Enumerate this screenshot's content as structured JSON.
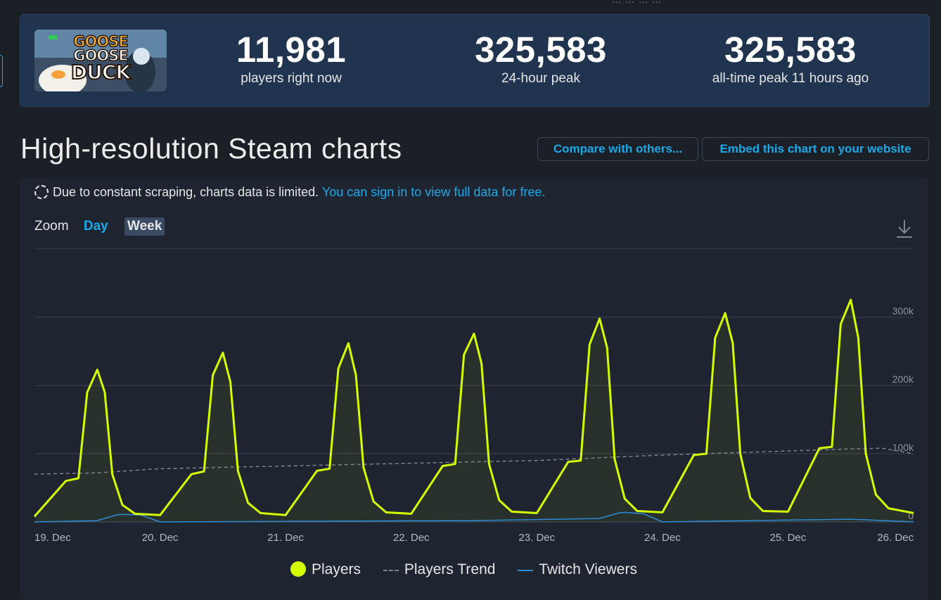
{
  "header": {
    "top_faint_text": "… … … …"
  },
  "game": {
    "title_line1": "GOOSE",
    "title_line2": "GOOSE",
    "title_line3": "DUCK"
  },
  "stats": [
    {
      "value": "11,981",
      "label": "players right now"
    },
    {
      "value": "325,583",
      "label": "24-hour peak"
    },
    {
      "value": "325,583",
      "label": "all-time peak 11 hours ago"
    }
  ],
  "page_title": "High-resolution Steam charts",
  "buttons": {
    "compare": "Compare with others...",
    "embed": "Embed this chart on your website"
  },
  "notice": {
    "text": "Due to constant scraping, charts data is limited.",
    "link": "You can sign in to view full data for free."
  },
  "zoom": {
    "label": "Zoom",
    "options": [
      "Day",
      "Week"
    ],
    "active": "Week"
  },
  "icons": {
    "loading": "spinner-icon",
    "download": "download-icon"
  },
  "colors": {
    "players": "#d4ff00",
    "trend": "#7a8290",
    "twitch": "#2d8bd8",
    "accent": "#1aa9ea"
  },
  "chart_data": {
    "type": "line",
    "x_tick_labels": [
      "19. Dec",
      "20. Dec",
      "21. Dec",
      "22. Dec",
      "23. Dec",
      "24. Dec",
      "25. Dec",
      "26. Dec"
    ],
    "y_tick_labels": [
      "0",
      "100k",
      "200k",
      "300k"
    ],
    "ylim": [
      0,
      400000
    ],
    "grid": true,
    "legend_position": "bottom",
    "series": [
      {
        "name": "Players",
        "x_days": [
          0.0,
          0.25,
          0.35,
          0.42,
          0.5,
          0.56,
          0.62,
          0.7,
          0.8,
          1.0,
          1.25,
          1.35,
          1.42,
          1.5,
          1.56,
          1.62,
          1.7,
          1.8,
          2.0,
          2.25,
          2.35,
          2.42,
          2.5,
          2.56,
          2.62,
          2.7,
          2.8,
          3.0,
          3.25,
          3.35,
          3.42,
          3.5,
          3.56,
          3.62,
          3.7,
          3.8,
          4.0,
          4.25,
          4.35,
          4.42,
          4.5,
          4.56,
          4.62,
          4.7,
          4.8,
          5.0,
          5.25,
          5.35,
          5.42,
          5.5,
          5.56,
          5.62,
          5.7,
          5.8,
          6.0,
          6.25,
          6.35,
          6.42,
          6.5,
          6.56,
          6.62,
          6.7,
          6.8,
          7.0
        ],
        "values": [
          8000,
          60000,
          64000,
          190000,
          223000,
          190000,
          70000,
          25000,
          12000,
          10000,
          70000,
          74000,
          215000,
          248000,
          205000,
          75000,
          28000,
          13000,
          10000,
          75000,
          78000,
          225000,
          262000,
          215000,
          80000,
          30000,
          14000,
          12000,
          82000,
          85000,
          245000,
          276000,
          232000,
          85000,
          32000,
          15000,
          13000,
          88000,
          90000,
          260000,
          298000,
          255000,
          92000,
          34000,
          16000,
          14000,
          98000,
          100000,
          270000,
          306000,
          262000,
          100000,
          35000,
          16000,
          15000,
          108000,
          110000,
          290000,
          325583,
          270000,
          100000,
          40000,
          20000,
          13000
        ]
      },
      {
        "name": "Players Trend",
        "x_days": [
          0.0,
          0.5,
          1.0,
          1.5,
          2.0,
          2.5,
          3.0,
          3.5,
          4.0,
          4.5,
          5.0,
          5.5,
          6.0,
          6.5,
          6.75,
          7.0
        ],
        "values": [
          70000,
          72000,
          78000,
          80000,
          82000,
          84000,
          86000,
          88000,
          90000,
          94000,
          98000,
          101000,
          104000,
          107000,
          108000,
          100000
        ]
      },
      {
        "name": "Twitch Viewers",
        "x_days": [
          0.0,
          0.5,
          0.65,
          0.7,
          0.85,
          1.0,
          3.5,
          4.5,
          4.65,
          4.7,
          4.85,
          5.0,
          6.5,
          7.0
        ],
        "values": [
          0,
          2000,
          10000,
          11000,
          10000,
          0,
          2000,
          5000,
          13000,
          14000,
          12000,
          0,
          4000,
          0
        ]
      }
    ]
  }
}
